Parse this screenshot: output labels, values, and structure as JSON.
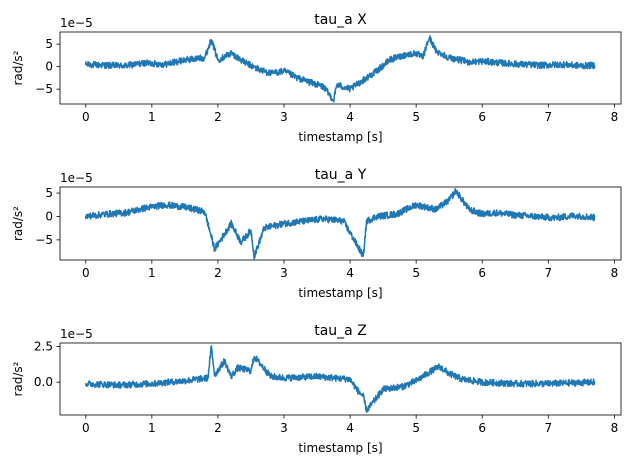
{
  "chart_data": [
    {
      "type": "line",
      "title": "tau_a X",
      "xlabel": "timestamp [s]",
      "ylabel": "rad/s²",
      "offset_text": "1e−5",
      "xlim": [
        -0.39,
        8.1
      ],
      "ylim": [
        -8.3,
        7.7
      ],
      "xticks": [
        0,
        1,
        2,
        3,
        4,
        5,
        6,
        7,
        8
      ],
      "yticks": [
        -5,
        0,
        5
      ],
      "ytick_labels": [
        "−5",
        "0",
        "5"
      ],
      "color": "#1f77b4",
      "series": [
        {
          "x": [
            0,
            0.3,
            0.6,
            0.9,
            1.2,
            1.5,
            1.8,
            1.9,
            2.0,
            2.2,
            2.4,
            2.6,
            2.8,
            3.0,
            3.2,
            3.4,
            3.6,
            3.75,
            3.8,
            4.0,
            4.2,
            4.4,
            4.6,
            4.8,
            5.0,
            5.1,
            5.2,
            5.3,
            5.5,
            5.8,
            6.0,
            6.3,
            6.6,
            6.9,
            7.2,
            7.5,
            7.7
          ],
          "y": [
            0.5,
            0.3,
            0.2,
            0.8,
            0.5,
            1.5,
            2.0,
            6.0,
            1.5,
            3.0,
            1.0,
            -0.5,
            -1.5,
            -1.0,
            -2.5,
            -3.5,
            -4.5,
            -7.5,
            -4.0,
            -5.0,
            -3.0,
            -1.0,
            1.5,
            2.5,
            3.0,
            2.0,
            6.5,
            3.5,
            2.0,
            1.0,
            1.2,
            0.8,
            0.5,
            0.3,
            0.5,
            0.2,
            0.3
          ]
        }
      ]
    },
    {
      "type": "line",
      "title": "tau_a Y",
      "xlabel": "timestamp [s]",
      "ylabel": "rad/s²",
      "offset_text": "1e−5",
      "xlim": [
        -0.39,
        8.1
      ],
      "ylim": [
        -9.3,
        6.3
      ],
      "xticks": [
        0,
        1,
        2,
        3,
        4,
        5,
        6,
        7,
        8
      ],
      "yticks": [
        -5,
        0,
        5
      ],
      "ytick_labels": [
        "−5",
        "0",
        "5"
      ],
      "color": "#1f77b4",
      "series": [
        {
          "x": [
            0,
            0.3,
            0.6,
            0.9,
            1.2,
            1.5,
            1.8,
            1.95,
            2.2,
            2.35,
            2.5,
            2.55,
            2.7,
            3.0,
            3.3,
            3.6,
            3.9,
            4.2,
            4.25,
            4.4,
            4.7,
            5.0,
            5.3,
            5.5,
            5.6,
            5.8,
            6.0,
            6.2,
            6.5,
            6.8,
            7.1,
            7.4,
            7.7
          ],
          "y": [
            0.0,
            0.5,
            0.8,
            1.8,
            2.5,
            2.0,
            1.0,
            -7.0,
            -1.5,
            -5.5,
            -3.0,
            -8.5,
            -2.5,
            -1.5,
            -1.0,
            -0.5,
            -1.0,
            -8.5,
            -1.0,
            0.0,
            0.5,
            2.5,
            1.5,
            3.5,
            5.5,
            1.5,
            0.5,
            0.8,
            0.3,
            0.0,
            -0.3,
            0.2,
            -0.2
          ]
        }
      ]
    },
    {
      "type": "line",
      "title": "tau_a Z",
      "xlabel": "timestamp [s]",
      "ylabel": "rad/s²",
      "offset_text": "1e−5",
      "xlim": [
        -0.39,
        8.1
      ],
      "ylim": [
        -2.3,
        2.75
      ],
      "xticks": [
        0,
        1,
        2,
        3,
        4,
        5,
        6,
        7,
        8
      ],
      "yticks": [
        0.0,
        2.5
      ],
      "ytick_labels": [
        "0.0",
        "2.5"
      ],
      "color": "#1f77b4",
      "series": [
        {
          "x": [
            0,
            0.5,
            1.0,
            1.5,
            1.85,
            1.9,
            1.95,
            2.1,
            2.2,
            2.3,
            2.5,
            2.55,
            2.8,
            3.0,
            3.5,
            4.0,
            4.1,
            4.2,
            4.25,
            4.5,
            4.8,
            5.0,
            5.2,
            5.35,
            5.5,
            5.7,
            6.0,
            6.5,
            7.0,
            7.7
          ],
          "y": [
            -0.1,
            -0.2,
            -0.1,
            0.1,
            0.3,
            2.5,
            0.5,
            1.5,
            0.4,
            1.0,
            0.8,
            1.8,
            0.4,
            0.3,
            0.4,
            0.2,
            -0.5,
            -1.0,
            -2.0,
            -0.5,
            -0.3,
            0.1,
            0.7,
            1.1,
            0.6,
            0.2,
            0.0,
            -0.1,
            -0.1,
            0.0
          ]
        }
      ]
    }
  ]
}
